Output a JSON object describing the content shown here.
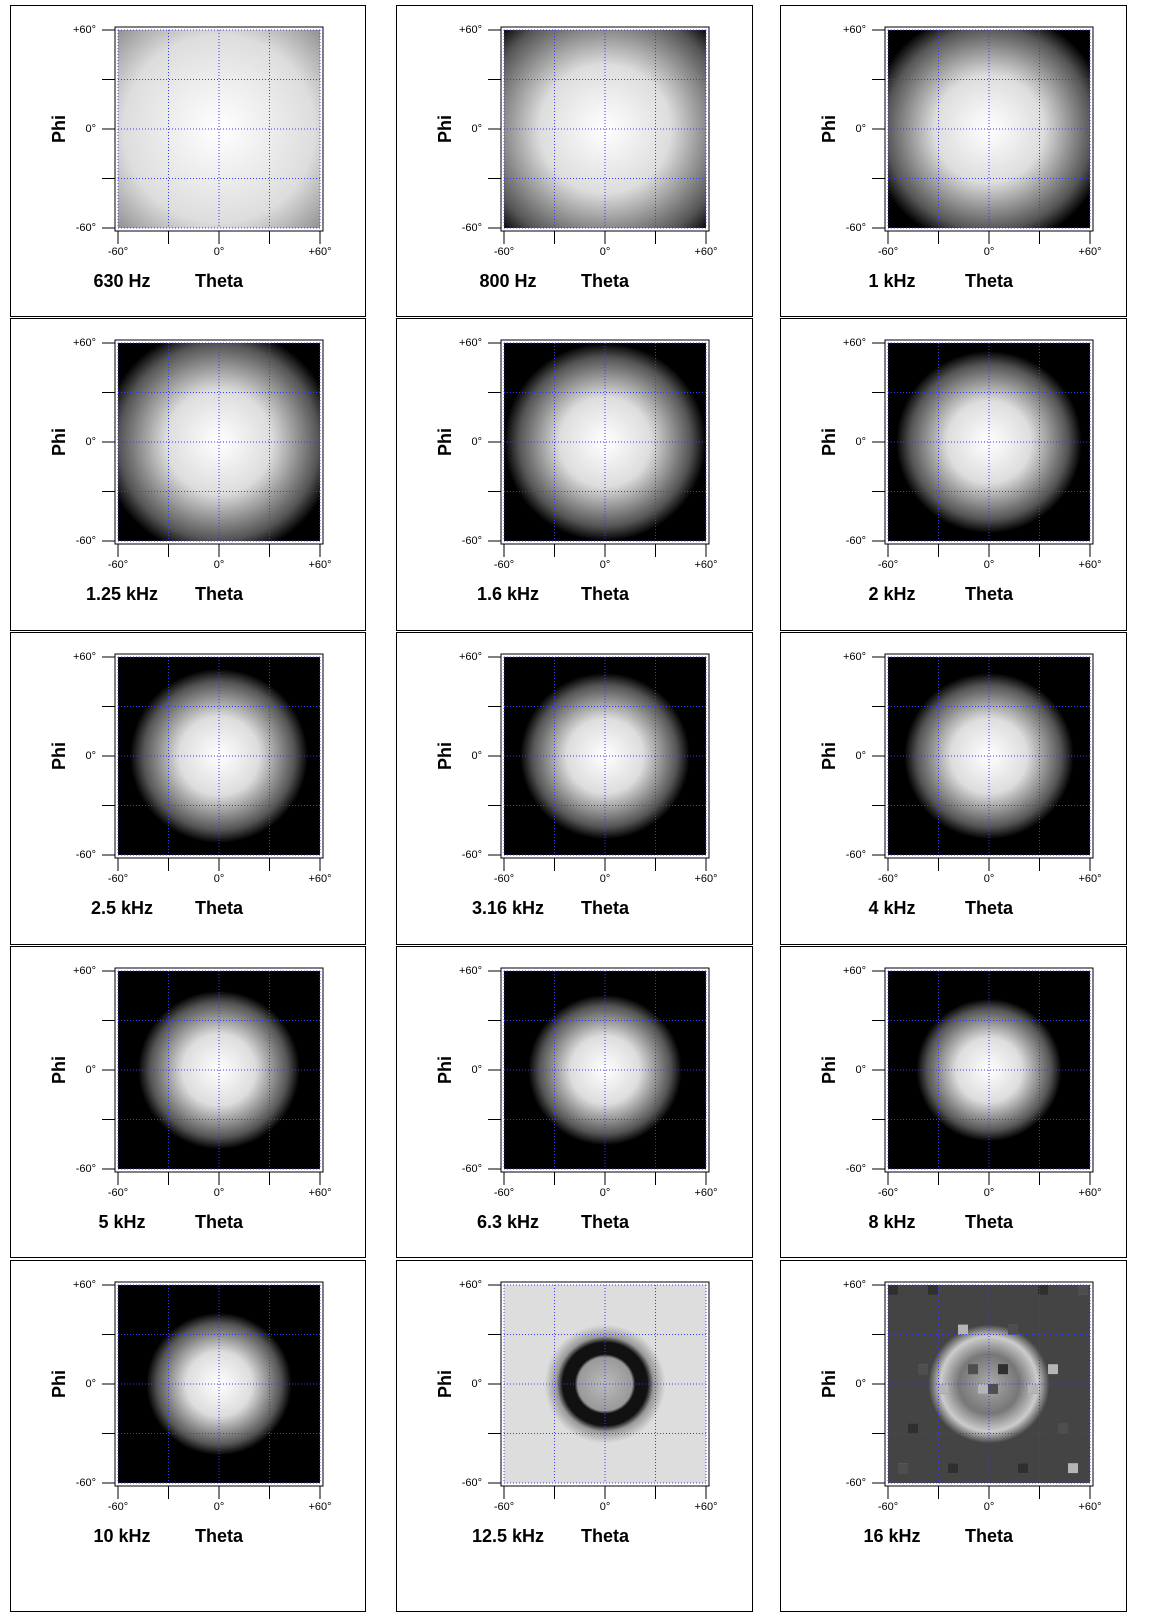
{
  "chart_data": [
    {
      "type": "heatmap",
      "title": "630 Hz",
      "x_label": "Theta",
      "y_label": "Phi",
      "xlim": [
        -60,
        60
      ],
      "ylim": [
        -60,
        60
      ],
      "xticks": [
        {
          "value": -60,
          "label": "-60°"
        },
        {
          "value": 0,
          "label": "0°"
        },
        {
          "value": 60,
          "label": "+60°"
        }
      ],
      "yticks": [
        {
          "value": -60,
          "label": "-60°"
        },
        {
          "value": 0,
          "label": "0°"
        },
        {
          "value": 60,
          "label": "+60°"
        }
      ],
      "x_minor_ticks": [
        -30,
        30
      ],
      "y_minor_ticks": [
        -30,
        30
      ],
      "grid": true,
      "grid_color": "#3a3af0"
    },
    {
      "type": "heatmap",
      "title": "800 Hz",
      "x_label": "Theta",
      "y_label": "Phi",
      "xlim": [
        -60,
        60
      ],
      "ylim": [
        -60,
        60
      ],
      "xticks": [
        {
          "value": -60,
          "label": "-60°"
        },
        {
          "value": 0,
          "label": "0°"
        },
        {
          "value": 60,
          "label": "+60°"
        }
      ],
      "yticks": [
        {
          "value": -60,
          "label": "-60°"
        },
        {
          "value": 0,
          "label": "0°"
        },
        {
          "value": 60,
          "label": "+60°"
        }
      ],
      "x_minor_ticks": [
        -30,
        30
      ],
      "y_minor_ticks": [
        -30,
        30
      ],
      "grid": true,
      "grid_color": "#3a3af0"
    },
    {
      "type": "heatmap",
      "title": "1 kHz",
      "x_label": "Theta",
      "y_label": "Phi",
      "xlim": [
        -60,
        60
      ],
      "ylim": [
        -60,
        60
      ],
      "xticks": [
        {
          "value": -60,
          "label": "-60°"
        },
        {
          "value": 0,
          "label": "0°"
        },
        {
          "value": 60,
          "label": "+60°"
        }
      ],
      "yticks": [
        {
          "value": -60,
          "label": "-60°"
        },
        {
          "value": 0,
          "label": "0°"
        },
        {
          "value": 60,
          "label": "+60°"
        }
      ],
      "x_minor_ticks": [
        -30,
        30
      ],
      "y_minor_ticks": [
        -30,
        30
      ],
      "grid": true,
      "grid_color": "#3a3af0"
    },
    {
      "type": "heatmap",
      "title": "1.25 kHz",
      "x_label": "Theta",
      "y_label": "Phi",
      "xlim": [
        -60,
        60
      ],
      "ylim": [
        -60,
        60
      ],
      "xticks": [
        {
          "value": -60,
          "label": "-60°"
        },
        {
          "value": 0,
          "label": "0°"
        },
        {
          "value": 60,
          "label": "+60°"
        }
      ],
      "yticks": [
        {
          "value": -60,
          "label": "-60°"
        },
        {
          "value": 0,
          "label": "0°"
        },
        {
          "value": 60,
          "label": "+60°"
        }
      ],
      "x_minor_ticks": [
        -30,
        30
      ],
      "y_minor_ticks": [
        -30,
        30
      ],
      "grid": true,
      "grid_color": "#3a3af0"
    },
    {
      "type": "heatmap",
      "title": "1.6 kHz",
      "x_label": "Theta",
      "y_label": "Phi",
      "xlim": [
        -60,
        60
      ],
      "ylim": [
        -60,
        60
      ],
      "xticks": [
        {
          "value": -60,
          "label": "-60°"
        },
        {
          "value": 0,
          "label": "0°"
        },
        {
          "value": 60,
          "label": "+60°"
        }
      ],
      "yticks": [
        {
          "value": -60,
          "label": "-60°"
        },
        {
          "value": 0,
          "label": "0°"
        },
        {
          "value": 60,
          "label": "+60°"
        }
      ],
      "x_minor_ticks": [
        -30,
        30
      ],
      "y_minor_ticks": [
        -30,
        30
      ],
      "grid": true,
      "grid_color": "#3a3af0"
    },
    {
      "type": "heatmap",
      "title": "2 kHz",
      "x_label": "Theta",
      "y_label": "Phi",
      "xlim": [
        -60,
        60
      ],
      "ylim": [
        -60,
        60
      ],
      "xticks": [
        {
          "value": -60,
          "label": "-60°"
        },
        {
          "value": 0,
          "label": "0°"
        },
        {
          "value": 60,
          "label": "+60°"
        }
      ],
      "yticks": [
        {
          "value": -60,
          "label": "-60°"
        },
        {
          "value": 0,
          "label": "0°"
        },
        {
          "value": 60,
          "label": "+60°"
        }
      ],
      "x_minor_ticks": [
        -30,
        30
      ],
      "y_minor_ticks": [
        -30,
        30
      ],
      "grid": true,
      "grid_color": "#3a3af0"
    },
    {
      "type": "heatmap",
      "title": "2.5 kHz",
      "x_label": "Theta",
      "y_label": "Phi",
      "xlim": [
        -60,
        60
      ],
      "ylim": [
        -60,
        60
      ],
      "xticks": [
        {
          "value": -60,
          "label": "-60°"
        },
        {
          "value": 0,
          "label": "0°"
        },
        {
          "value": 60,
          "label": "+60°"
        }
      ],
      "yticks": [
        {
          "value": -60,
          "label": "-60°"
        },
        {
          "value": 0,
          "label": "0°"
        },
        {
          "value": 60,
          "label": "+60°"
        }
      ],
      "x_minor_ticks": [
        -30,
        30
      ],
      "y_minor_ticks": [
        -30,
        30
      ],
      "grid": true,
      "grid_color": "#3a3af0"
    },
    {
      "type": "heatmap",
      "title": "3.16 kHz",
      "x_label": "Theta",
      "y_label": "Phi",
      "xlim": [
        -60,
        60
      ],
      "ylim": [
        -60,
        60
      ],
      "xticks": [
        {
          "value": -60,
          "label": "-60°"
        },
        {
          "value": 0,
          "label": "0°"
        },
        {
          "value": 60,
          "label": "+60°"
        }
      ],
      "yticks": [
        {
          "value": -60,
          "label": "-60°"
        },
        {
          "value": 0,
          "label": "0°"
        },
        {
          "value": 60,
          "label": "+60°"
        }
      ],
      "x_minor_ticks": [
        -30,
        30
      ],
      "y_minor_ticks": [
        -30,
        30
      ],
      "grid": true,
      "grid_color": "#3a3af0"
    },
    {
      "type": "heatmap",
      "title": "4 kHz",
      "x_label": "Theta",
      "y_label": "Phi",
      "xlim": [
        -60,
        60
      ],
      "ylim": [
        -60,
        60
      ],
      "xticks": [
        {
          "value": -60,
          "label": "-60°"
        },
        {
          "value": 0,
          "label": "0°"
        },
        {
          "value": 60,
          "label": "+60°"
        }
      ],
      "yticks": [
        {
          "value": -60,
          "label": "-60°"
        },
        {
          "value": 0,
          "label": "0°"
        },
        {
          "value": 60,
          "label": "+60°"
        }
      ],
      "x_minor_ticks": [
        -30,
        30
      ],
      "y_minor_ticks": [
        -30,
        30
      ],
      "grid": true,
      "grid_color": "#3a3af0"
    },
    {
      "type": "heatmap",
      "title": "5 kHz",
      "x_label": "Theta",
      "y_label": "Phi",
      "xlim": [
        -60,
        60
      ],
      "ylim": [
        -60,
        60
      ],
      "xticks": [
        {
          "value": -60,
          "label": "-60°"
        },
        {
          "value": 0,
          "label": "0°"
        },
        {
          "value": 60,
          "label": "+60°"
        }
      ],
      "yticks": [
        {
          "value": -60,
          "label": "-60°"
        },
        {
          "value": 0,
          "label": "0°"
        },
        {
          "value": 60,
          "label": "+60°"
        }
      ],
      "x_minor_ticks": [
        -30,
        30
      ],
      "y_minor_ticks": [
        -30,
        30
      ],
      "grid": true,
      "grid_color": "#3a3af0"
    },
    {
      "type": "heatmap",
      "title": "6.3 kHz",
      "x_label": "Theta",
      "y_label": "Phi",
      "xlim": [
        -60,
        60
      ],
      "ylim": [
        -60,
        60
      ],
      "xticks": [
        {
          "value": -60,
          "label": "-60°"
        },
        {
          "value": 0,
          "label": "0°"
        },
        {
          "value": 60,
          "label": "+60°"
        }
      ],
      "yticks": [
        {
          "value": -60,
          "label": "-60°"
        },
        {
          "value": 0,
          "label": "0°"
        },
        {
          "value": 60,
          "label": "+60°"
        }
      ],
      "x_minor_ticks": [
        -30,
        30
      ],
      "y_minor_ticks": [
        -30,
        30
      ],
      "grid": true,
      "grid_color": "#3a3af0"
    },
    {
      "type": "heatmap",
      "title": "8 kHz",
      "x_label": "Theta",
      "y_label": "Phi",
      "xlim": [
        -60,
        60
      ],
      "ylim": [
        -60,
        60
      ],
      "xticks": [
        {
          "value": -60,
          "label": "-60°"
        },
        {
          "value": 0,
          "label": "0°"
        },
        {
          "value": 60,
          "label": "+60°"
        }
      ],
      "yticks": [
        {
          "value": -60,
          "label": "-60°"
        },
        {
          "value": 0,
          "label": "0°"
        },
        {
          "value": 60,
          "label": "+60°"
        }
      ],
      "x_minor_ticks": [
        -30,
        30
      ],
      "y_minor_ticks": [
        -30,
        30
      ],
      "grid": true,
      "grid_color": "#3a3af0"
    },
    {
      "type": "heatmap",
      "title": "10 kHz",
      "x_label": "Theta",
      "y_label": "Phi",
      "xlim": [
        -60,
        60
      ],
      "ylim": [
        -60,
        60
      ],
      "xticks": [
        {
          "value": -60,
          "label": "-60°"
        },
        {
          "value": 0,
          "label": "0°"
        },
        {
          "value": 60,
          "label": "+60°"
        }
      ],
      "yticks": [
        {
          "value": -60,
          "label": "-60°"
        },
        {
          "value": 0,
          "label": "0°"
        },
        {
          "value": 60,
          "label": "+60°"
        }
      ],
      "x_minor_ticks": [
        -30,
        30
      ],
      "y_minor_ticks": [
        -30,
        30
      ],
      "grid": true,
      "grid_color": "#3a3af0"
    },
    {
      "type": "heatmap",
      "title": "12.5 kHz",
      "x_label": "Theta",
      "y_label": "Phi",
      "xlim": [
        -60,
        60
      ],
      "ylim": [
        -60,
        60
      ],
      "xticks": [
        {
          "value": -60,
          "label": "-60°"
        },
        {
          "value": 0,
          "label": "0°"
        },
        {
          "value": 60,
          "label": "+60°"
        }
      ],
      "yticks": [
        {
          "value": -60,
          "label": "-60°"
        },
        {
          "value": 0,
          "label": "0°"
        },
        {
          "value": 60,
          "label": "+60°"
        }
      ],
      "x_minor_ticks": [
        -30,
        30
      ],
      "y_minor_ticks": [
        -30,
        30
      ],
      "grid": true,
      "grid_color": "#3a3af0"
    },
    {
      "type": "heatmap",
      "title": "16 kHz",
      "x_label": "Theta",
      "y_label": "Phi",
      "xlim": [
        -60,
        60
      ],
      "ylim": [
        -60,
        60
      ],
      "xticks": [
        {
          "value": -60,
          "label": "-60°"
        },
        {
          "value": 0,
          "label": "0°"
        },
        {
          "value": 60,
          "label": "+60°"
        }
      ],
      "yticks": [
        {
          "value": -60,
          "label": "-60°"
        },
        {
          "value": 0,
          "label": "0°"
        },
        {
          "value": 60,
          "label": "+60°"
        }
      ],
      "x_minor_ticks": [
        -30,
        30
      ],
      "y_minor_ticks": [
        -30,
        30
      ],
      "grid": true,
      "grid_color": "#3a3af0"
    }
  ]
}
